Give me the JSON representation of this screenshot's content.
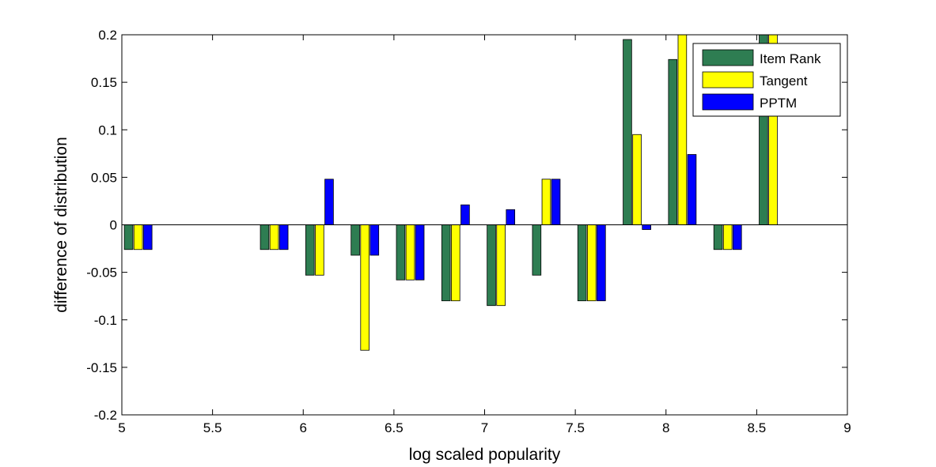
{
  "chart_data": {
    "type": "bar",
    "title": "",
    "xlabel": "log scaled popularity",
    "ylabel": "difference of distribution",
    "xlim": [
      5,
      9
    ],
    "ylim": [
      -0.2,
      0.2
    ],
    "xticks": [
      5,
      5.5,
      6,
      6.5,
      7,
      7.5,
      8,
      8.5,
      9
    ],
    "xtick_labels": [
      "5",
      "5.5",
      "6",
      "6.5",
      "7",
      "7.5",
      "8",
      "8.5",
      "9"
    ],
    "yticks": [
      -0.2,
      -0.15,
      -0.1,
      -0.05,
      0,
      0.05,
      0.1,
      0.15,
      0.2
    ],
    "ytick_labels": [
      "-0.2",
      "-0.15",
      "-0.1",
      "-0.05",
      "0",
      "0.05",
      "0.1",
      "0.15",
      "0.2"
    ],
    "grid": false,
    "legend_position": "top-right",
    "bar_width": 0.048,
    "x": [
      5.09,
      5.84,
      6.09,
      6.34,
      6.59,
      6.84,
      7.09,
      7.34,
      7.59,
      7.84,
      8.09,
      8.34,
      8.59
    ],
    "series": [
      {
        "name": "Item Rank",
        "color": "#2e7d52",
        "values": [
          -0.026,
          -0.026,
          -0.053,
          -0.032,
          -0.058,
          -0.08,
          -0.085,
          -0.053,
          -0.08,
          0.195,
          0.174,
          -0.026,
          0.2
        ]
      },
      {
        "name": "Tangent",
        "color": "#ffff00",
        "values": [
          -0.026,
          -0.026,
          -0.053,
          -0.132,
          -0.058,
          -0.08,
          -0.085,
          0.048,
          -0.08,
          0.095,
          0.2,
          -0.026,
          0.2
        ]
      },
      {
        "name": "PPTM",
        "color": "#0000ff",
        "values": [
          -0.026,
          -0.026,
          0.048,
          -0.032,
          -0.058,
          0.021,
          0.016,
          0.048,
          -0.08,
          -0.005,
          0.074,
          -0.026,
          0
        ]
      }
    ]
  }
}
